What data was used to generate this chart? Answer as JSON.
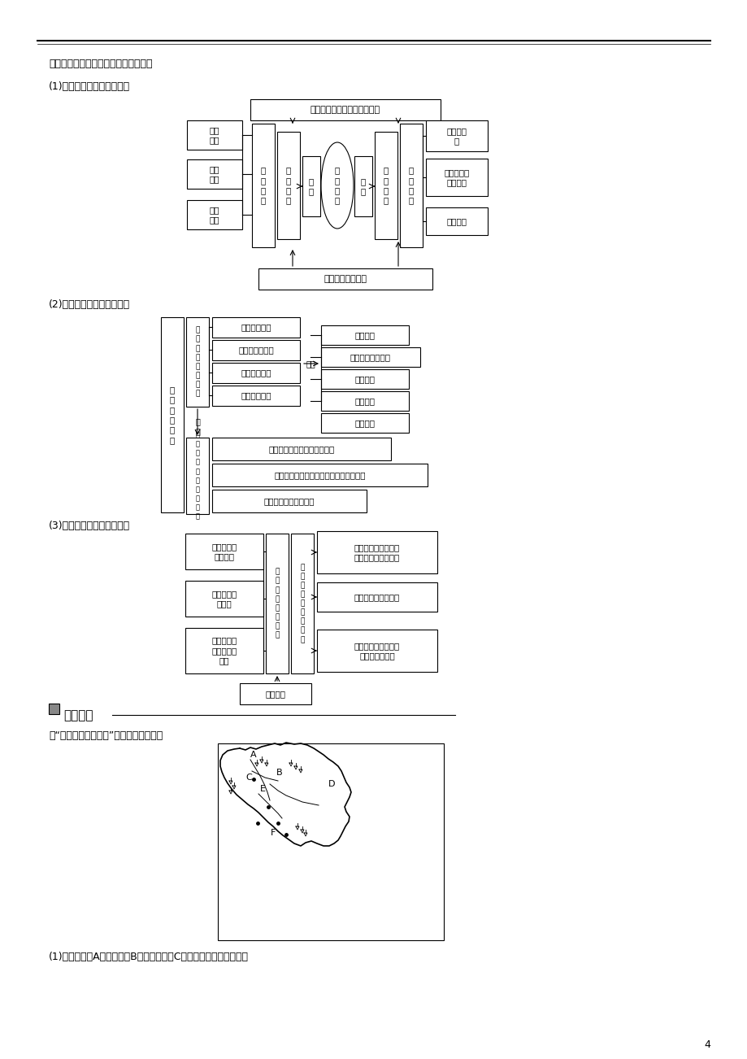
{
  "bg_color": "#ffffff",
  "page_width": 9.2,
  "page_height": 13.02,
  "intro_text": "提出相应的解决措施，完成下列框图。",
  "section1_title": "(1)黑土利用中的问题及措施",
  "section2_title": "(2)林业开发中的问题及对策",
  "section3_title": "(3)湿地利用中的问题及治理",
  "section4_title": "迁移应用",
  "map_caption": "读“我国东北地区略图”，回答下列问题。",
  "bottom_text": "(1)主要山脉：A＿＿＿＿、B＿＿＿＿＿、C＿＿＿＿＿。主要平原：",
  "page_number": "4"
}
